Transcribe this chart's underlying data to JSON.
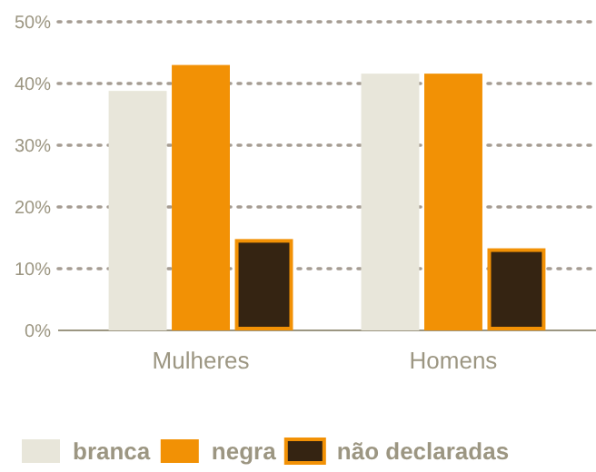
{
  "chart_data": {
    "type": "bar",
    "categories": [
      "Mulheres",
      "Homens"
    ],
    "series": [
      {
        "name": "branca",
        "color": "#e8e6da",
        "values": [
          38.8,
          41.6
        ]
      },
      {
        "name": "negra",
        "color": "#f29105",
        "values": [
          43,
          41.6
        ]
      },
      {
        "name": "não declaradas",
        "color": "#352412",
        "values": [
          14.8,
          13.3
        ]
      }
    ],
    "ylim": [
      0,
      50
    ],
    "yticks": [
      {
        "value": 0,
        "label": "0%"
      },
      {
        "value": 10,
        "label": "10%"
      },
      {
        "value": 20,
        "label": "20%"
      },
      {
        "value": 30,
        "label": "30%"
      },
      {
        "value": 40,
        "label": "40%"
      },
      {
        "value": 50,
        "label": "50%"
      }
    ],
    "grid": "y",
    "legend": "bottom"
  }
}
